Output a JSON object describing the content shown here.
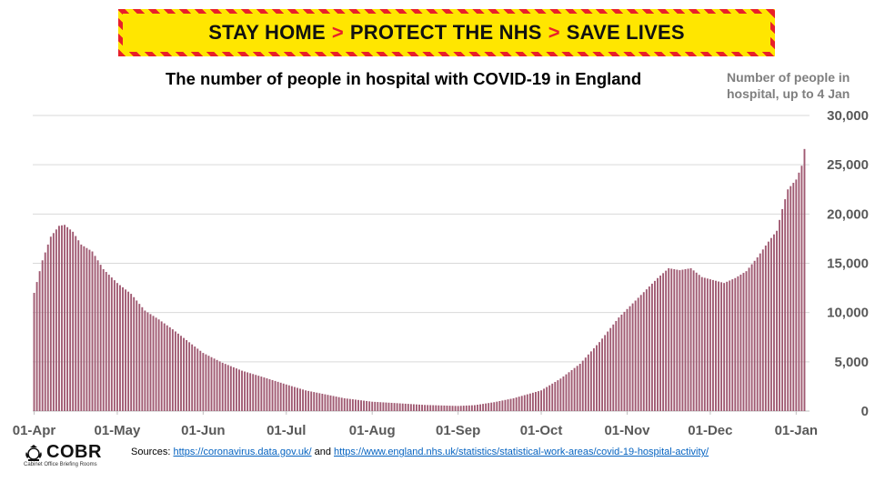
{
  "banner": {
    "part1": "STAY HOME",
    "part2": "PROTECT THE NHS",
    "part3": "SAVE LIVES",
    "separator": ">"
  },
  "logo": {
    "word": "COBR",
    "subtitle": "Cabinet Office Briefing Rooms"
  },
  "sources": {
    "prefix": "Sources:",
    "link1": "https://coronavirus.data.gov.uk/",
    "conjunction": "and",
    "link2": "https://www.england.nhs.uk/statistics/statistical-work-areas/covid-19-hospital-activity/"
  },
  "chart_data": {
    "type": "bar",
    "title": "The number of people in hospital with COVID-19 in England",
    "unit_note": "Number of people in hospital, up to 4 Jan",
    "xlabel": "",
    "ylabel": "",
    "ylim": [
      0,
      30000
    ],
    "yticks": [
      0,
      5000,
      10000,
      15000,
      20000,
      25000,
      30000
    ],
    "ytick_labels": [
      "0",
      "5,000",
      "10,000",
      "15,000",
      "20,000",
      "25,000",
      "30,000"
    ],
    "x_start": "2020-04-01",
    "x_end": "2021-01-04",
    "xtick_labels": [
      "01-Apr",
      "01-May",
      "01-Jun",
      "01-Jul",
      "01-Aug",
      "01-Sep",
      "01-Oct",
      "01-Nov",
      "01-Dec",
      "01-Jan"
    ],
    "xtick_dates": [
      "2020-04-01",
      "2020-05-01",
      "2020-06-01",
      "2020-07-01",
      "2020-08-01",
      "2020-09-01",
      "2020-10-01",
      "2020-11-01",
      "2020-12-01",
      "2021-01-01"
    ],
    "grid": true,
    "bar_color": "#a05a72",
    "anchors": [
      [
        "2020-04-01",
        12000
      ],
      [
        "2020-04-04",
        15300
      ],
      [
        "2020-04-07",
        17700
      ],
      [
        "2020-04-10",
        18800
      ],
      [
        "2020-04-12",
        18900
      ],
      [
        "2020-04-15",
        18200
      ],
      [
        "2020-04-18",
        16900
      ],
      [
        "2020-04-22",
        16200
      ],
      [
        "2020-04-26",
        14400
      ],
      [
        "2020-05-01",
        13000
      ],
      [
        "2020-05-06",
        11900
      ],
      [
        "2020-05-11",
        10200
      ],
      [
        "2020-05-16",
        9300
      ],
      [
        "2020-05-21",
        8300
      ],
      [
        "2020-05-26",
        7200
      ],
      [
        "2020-06-01",
        5900
      ],
      [
        "2020-06-08",
        4900
      ],
      [
        "2020-06-15",
        4100
      ],
      [
        "2020-06-22",
        3500
      ],
      [
        "2020-07-01",
        2700
      ],
      [
        "2020-07-08",
        2100
      ],
      [
        "2020-07-15",
        1700
      ],
      [
        "2020-07-22",
        1300
      ],
      [
        "2020-08-01",
        950
      ],
      [
        "2020-08-10",
        800
      ],
      [
        "2020-08-20",
        620
      ],
      [
        "2020-09-01",
        520
      ],
      [
        "2020-09-07",
        600
      ],
      [
        "2020-09-14",
        900
      ],
      [
        "2020-09-21",
        1300
      ],
      [
        "2020-10-01",
        2100
      ],
      [
        "2020-10-08",
        3300
      ],
      [
        "2020-10-15",
        4800
      ],
      [
        "2020-10-22",
        7000
      ],
      [
        "2020-10-29",
        9500
      ],
      [
        "2020-11-05",
        11500
      ],
      [
        "2020-11-12",
        13500
      ],
      [
        "2020-11-16",
        14500
      ],
      [
        "2020-11-20",
        14300
      ],
      [
        "2020-11-24",
        14500
      ],
      [
        "2020-11-28",
        13600
      ],
      [
        "2020-12-02",
        13300
      ],
      [
        "2020-12-06",
        13000
      ],
      [
        "2020-12-10",
        13500
      ],
      [
        "2020-12-14",
        14200
      ],
      [
        "2020-12-18",
        15600
      ],
      [
        "2020-12-22",
        17200
      ],
      [
        "2020-12-25",
        18300
      ],
      [
        "2020-12-27",
        20500
      ],
      [
        "2020-12-29",
        22500
      ],
      [
        "2021-01-01",
        23500
      ],
      [
        "2021-01-02",
        24200
      ],
      [
        "2021-01-03",
        24900
      ],
      [
        "2021-01-04",
        26600
      ]
    ]
  }
}
